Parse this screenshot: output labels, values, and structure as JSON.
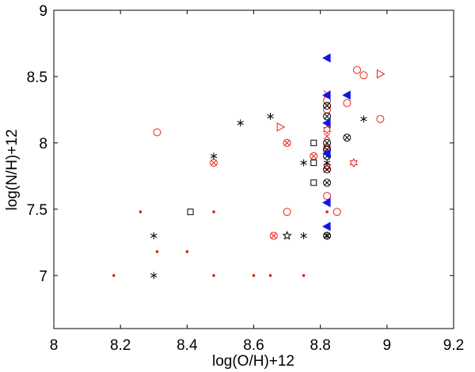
{
  "chart_data": {
    "type": "scatter",
    "title": "",
    "xlabel": "log(O/H)+12",
    "ylabel": "log(N/H)+12",
    "xlim": [
      8.0,
      9.2
    ],
    "ylim": [
      6.6,
      9.0
    ],
    "xticks": [
      "8",
      "8.2",
      "8.4",
      "8.6",
      "8.8",
      "9",
      "9.2"
    ],
    "yticks": [
      "7",
      "7.5",
      "8",
      "8.5",
      "9"
    ],
    "grid": false,
    "colors": {
      "red": "#e8201a",
      "black": "#000000",
      "blue": "#1414e6"
    },
    "series": [
      {
        "name": "red dots",
        "marker": "dot",
        "color": "red",
        "points": [
          [
            8.18,
            7.0
          ],
          [
            8.26,
            7.48
          ],
          [
            8.31,
            7.18
          ],
          [
            8.4,
            7.18
          ],
          [
            8.48,
            7.0
          ],
          [
            8.48,
            7.48
          ],
          [
            8.6,
            7.0
          ],
          [
            8.65,
            7.0
          ],
          [
            8.75,
            7.0
          ],
          [
            8.82,
            7.48
          ]
        ]
      },
      {
        "name": "red circles",
        "marker": "circle",
        "color": "red",
        "points": [
          [
            8.31,
            8.08
          ],
          [
            8.7,
            7.48
          ],
          [
            8.82,
            8.32
          ],
          [
            8.82,
            8.25
          ],
          [
            8.82,
            7.6
          ],
          [
            8.85,
            7.48
          ],
          [
            8.88,
            8.3
          ],
          [
            8.91,
            8.55
          ],
          [
            8.93,
            8.51
          ],
          [
            8.98,
            8.18
          ]
        ]
      },
      {
        "name": "red crossed circles",
        "marker": "crossed-circle",
        "color": "red",
        "points": [
          [
            8.48,
            7.85
          ],
          [
            8.66,
            7.3
          ],
          [
            8.7,
            8.0
          ],
          [
            8.78,
            7.9
          ]
        ]
      },
      {
        "name": "red crosses",
        "marker": "x",
        "color": "red",
        "points": [
          [
            8.82,
            8.37
          ],
          [
            8.82,
            8.05
          ],
          [
            8.82,
            7.8
          ]
        ]
      },
      {
        "name": "red right triangles",
        "marker": "triangle-right",
        "color": "red",
        "points": [
          [
            8.68,
            8.12
          ],
          [
            8.98,
            8.52
          ]
        ]
      },
      {
        "name": "red hexagrams",
        "marker": "hexagram",
        "color": "red",
        "points": [
          [
            8.82,
            8.1
          ],
          [
            8.82,
            7.96
          ],
          [
            8.82,
            7.82
          ],
          [
            8.9,
            7.85
          ]
        ]
      },
      {
        "name": "black asterisks",
        "marker": "asterisk",
        "color": "black",
        "points": [
          [
            8.3,
            7.3
          ],
          [
            8.3,
            7.0
          ],
          [
            8.48,
            7.9
          ],
          [
            8.56,
            8.15
          ],
          [
            8.65,
            8.2
          ],
          [
            8.75,
            7.85
          ],
          [
            8.75,
            7.3
          ],
          [
            8.82,
            7.85
          ],
          [
            8.82,
            7.3
          ],
          [
            8.93,
            8.18
          ]
        ]
      },
      {
        "name": "black squares",
        "marker": "square",
        "color": "black",
        "points": [
          [
            8.41,
            7.48
          ],
          [
            8.78,
            8.0
          ],
          [
            8.78,
            7.85
          ],
          [
            8.78,
            7.7
          ]
        ]
      },
      {
        "name": "black crossed circles",
        "marker": "crossed-circle",
        "color": "black",
        "points": [
          [
            8.82,
            8.28
          ],
          [
            8.82,
            8.2
          ],
          [
            8.82,
            8.0
          ],
          [
            8.82,
            7.95
          ],
          [
            8.82,
            7.9
          ],
          [
            8.82,
            7.8
          ],
          [
            8.82,
            7.7
          ],
          [
            8.88,
            8.04
          ],
          [
            8.82,
            7.3
          ]
        ]
      },
      {
        "name": "black pentagram",
        "marker": "pentagram",
        "color": "black",
        "points": [
          [
            8.7,
            7.3
          ]
        ]
      },
      {
        "name": "blue left triangles",
        "marker": "triangle-left",
        "color": "blue",
        "points": [
          [
            8.82,
            8.64
          ],
          [
            8.82,
            8.36
          ],
          [
            8.82,
            8.15
          ],
          [
            8.82,
            7.92
          ],
          [
            8.82,
            7.55
          ],
          [
            8.82,
            7.37
          ],
          [
            8.88,
            8.36
          ]
        ]
      }
    ]
  }
}
